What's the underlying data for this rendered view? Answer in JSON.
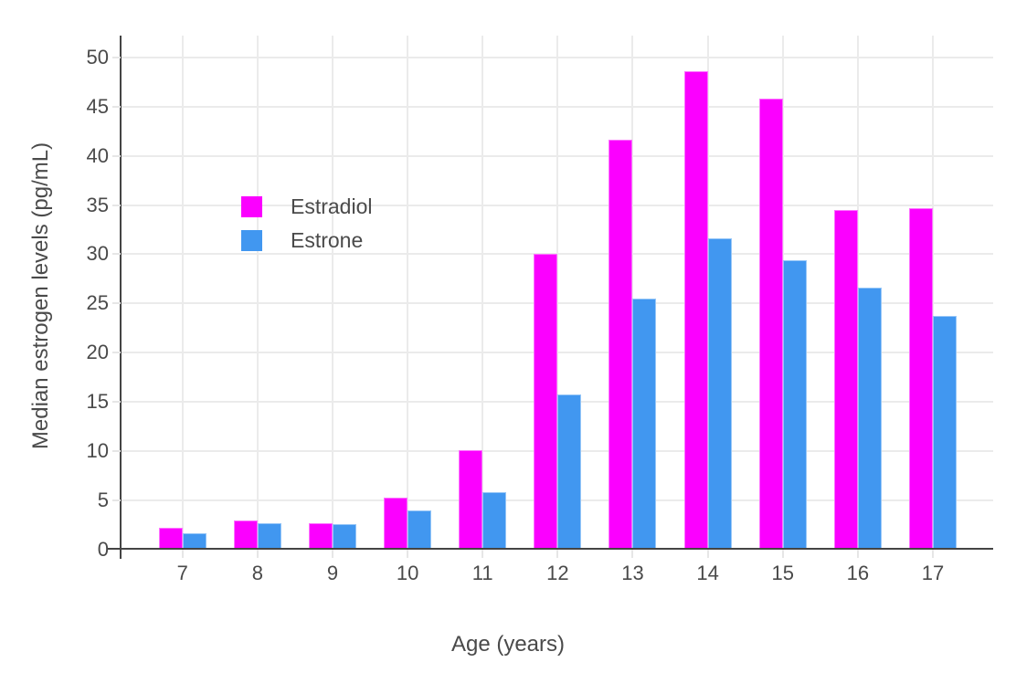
{
  "figure": {
    "x_axis_title": "Age (years)",
    "y_axis_title": "Median estrogen levels (pg/mL)"
  },
  "colors": {
    "estradiol": "#fb00ff",
    "estrone": "#4197f0",
    "axis_line": "#444444",
    "grid_line": "#ebebeb",
    "tick_text": "#4a4a4a",
    "background": "#ffffff"
  },
  "chart_data": {
    "type": "bar",
    "categories": [
      "7",
      "8",
      "9",
      "10",
      "11",
      "12",
      "13",
      "14",
      "15",
      "16",
      "17"
    ],
    "series": [
      {
        "name": "Estradiol",
        "color": "#fb00ff",
        "values": [
          2.2,
          3.0,
          2.7,
          5.3,
          10.1,
          30.0,
          41.6,
          48.6,
          45.8,
          34.5,
          34.7
        ]
      },
      {
        "name": "Estrone",
        "color": "#4197f0",
        "values": [
          1.7,
          2.7,
          2.6,
          4.0,
          5.8,
          15.8,
          25.5,
          31.6,
          29.4,
          26.6,
          23.7
        ]
      }
    ],
    "title": "",
    "xlabel": "Age (years)",
    "ylabel": "Median estrogen levels (pg/mL)",
    "ylim": [
      0,
      52.2
    ],
    "yticks": [
      0,
      5,
      10,
      15,
      20,
      25,
      30,
      35,
      40,
      45,
      50
    ],
    "grid": true,
    "legend_position": "inside-top-left",
    "bar_mode": "grouped"
  }
}
